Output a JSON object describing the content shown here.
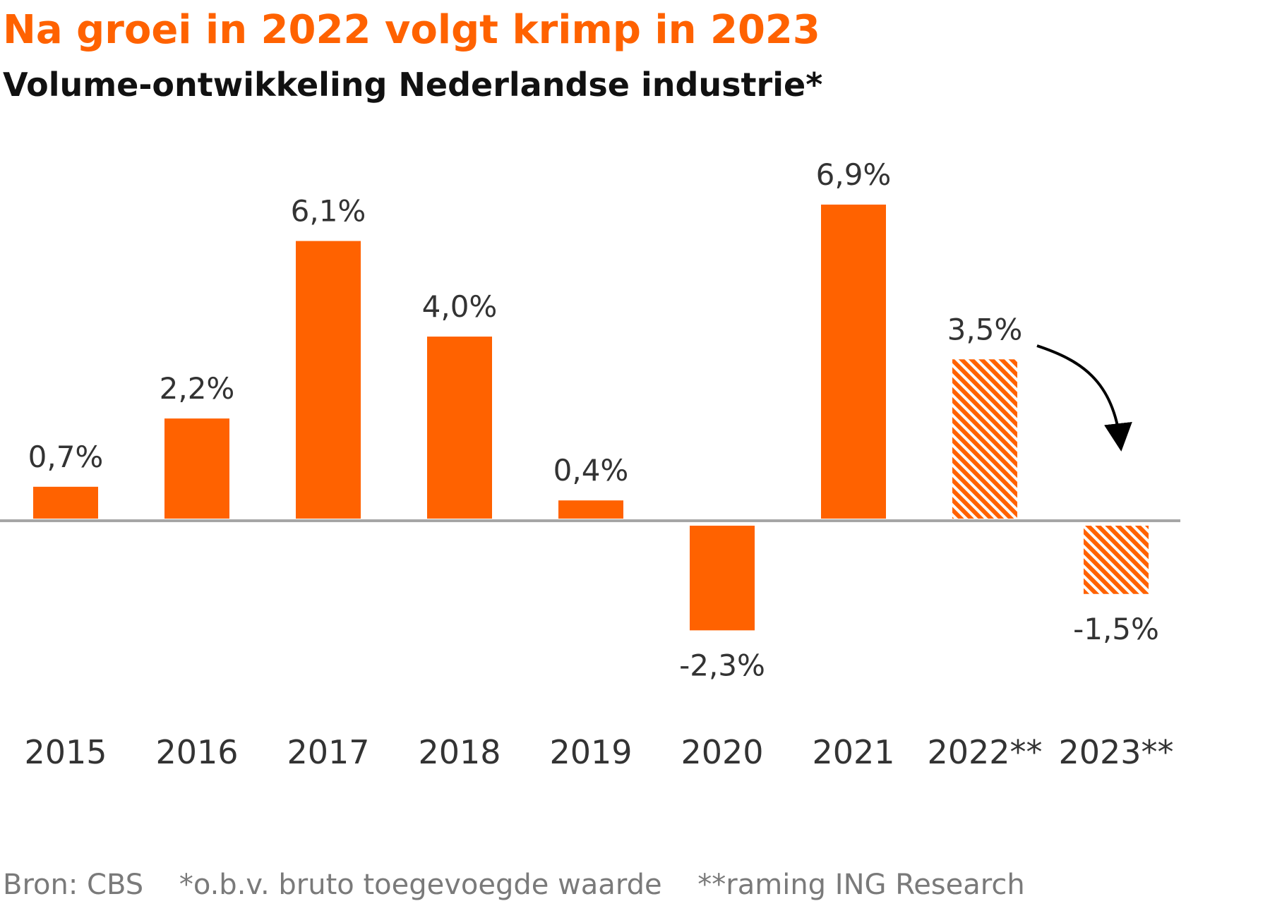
{
  "chart_data": {
    "type": "bar",
    "title": "Na groei in 2022 volgt krimp in 2023",
    "subtitle": "Volume-ontwikkeling Nederlandse industrie*",
    "categories": [
      "2015",
      "2016",
      "2017",
      "2018",
      "2019",
      "2020",
      "2021",
      "2022**",
      "2023**"
    ],
    "values": [
      0.7,
      2.2,
      6.1,
      4.0,
      0.4,
      -2.3,
      6.9,
      3.5,
      -1.5
    ],
    "data_labels": [
      "0,7%",
      "2,2%",
      "6,1%",
      "4,0%",
      "0,4%",
      "-2,3%",
      "6,9%",
      "3,5%",
      "-1,5%"
    ],
    "forecast": [
      false,
      false,
      false,
      false,
      false,
      false,
      false,
      true,
      true
    ],
    "xlabel": "",
    "ylabel": "",
    "ylim": [
      -3,
      8
    ],
    "grid": false,
    "legend": "none",
    "annotations": [
      {
        "type": "arrow",
        "from_category": "2022**",
        "to_category": "2023**"
      }
    ]
  },
  "footnotes": {
    "source": "Bron: CBS",
    "note1": "*o.b.v. bruto toegevoegde waarde",
    "note2": "**raming ING Research"
  },
  "colors": {
    "accent": "#ff6200",
    "hatch_background": "#ffffff",
    "baseline": "#a6a6a6",
    "label_text": "#333333",
    "arrow": "#000000"
  }
}
